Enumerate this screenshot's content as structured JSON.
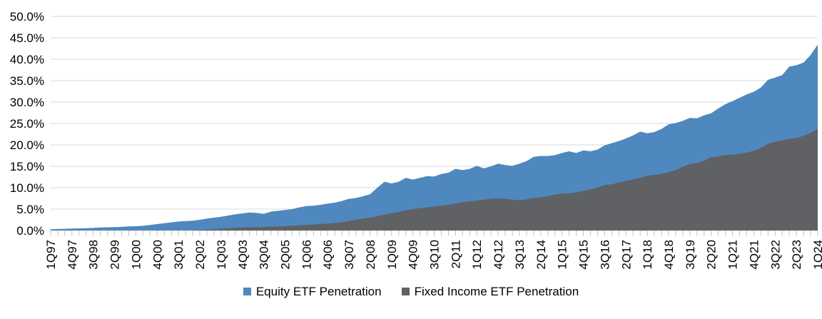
{
  "chart_data": {
    "type": "area",
    "title": "",
    "xlabel": "",
    "ylabel": "",
    "grid": true,
    "legend_position": "bottom",
    "categories": [
      "1Q97",
      "2Q97",
      "3Q97",
      "4Q97",
      "1Q98",
      "2Q98",
      "3Q98",
      "4Q98",
      "1Q99",
      "2Q99",
      "3Q99",
      "4Q99",
      "1Q00",
      "2Q00",
      "3Q00",
      "4Q00",
      "1Q01",
      "2Q01",
      "3Q01",
      "4Q01",
      "1Q02",
      "2Q02",
      "3Q02",
      "4Q02",
      "1Q03",
      "2Q03",
      "3Q03",
      "4Q03",
      "1Q04",
      "2Q04",
      "3Q04",
      "4Q04",
      "1Q05",
      "2Q05",
      "3Q05",
      "4Q05",
      "1Q06",
      "2Q06",
      "3Q06",
      "4Q06",
      "1Q07",
      "2Q07",
      "3Q07",
      "4Q07",
      "1Q08",
      "2Q08",
      "3Q08",
      "4Q08",
      "1Q09",
      "2Q09",
      "3Q09",
      "4Q09",
      "1Q10",
      "2Q10",
      "3Q10",
      "4Q10",
      "1Q11",
      "2Q11",
      "3Q11",
      "4Q11",
      "1Q12",
      "2Q12",
      "3Q12",
      "4Q12",
      "1Q13",
      "2Q13",
      "3Q13",
      "4Q13",
      "1Q14",
      "2Q14",
      "3Q14",
      "4Q14",
      "1Q15",
      "2Q15",
      "3Q15",
      "4Q15",
      "1Q16",
      "2Q16",
      "3Q16",
      "4Q16",
      "1Q17",
      "2Q17",
      "3Q17",
      "4Q17",
      "1Q18",
      "2Q18",
      "3Q18",
      "4Q18",
      "1Q19",
      "2Q19",
      "3Q19",
      "4Q19",
      "1Q20",
      "2Q20",
      "3Q20",
      "4Q20",
      "1Q21",
      "2Q21",
      "3Q21",
      "4Q21",
      "1Q22",
      "2Q22",
      "3Q22",
      "4Q22",
      "1Q23",
      "2Q23",
      "3Q23",
      "4Q23",
      "1Q24"
    ],
    "series": [
      {
        "name": "Equity ETF Penetration",
        "color": "#4E88BE",
        "values": [
          0.3,
          0.35,
          0.4,
          0.45,
          0.5,
          0.55,
          0.6,
          0.7,
          0.75,
          0.8,
          0.85,
          0.95,
          1.0,
          1.1,
          1.3,
          1.5,
          1.7,
          1.9,
          2.1,
          2.2,
          2.3,
          2.5,
          2.8,
          3.0,
          3.2,
          3.5,
          3.8,
          4.0,
          4.2,
          4.1,
          3.9,
          4.4,
          4.6,
          4.8,
          5.0,
          5.4,
          5.7,
          5.8,
          6.0,
          6.3,
          6.5,
          6.9,
          7.4,
          7.6,
          8.0,
          8.5,
          10.0,
          11.4,
          11.0,
          11.4,
          12.3,
          11.9,
          12.3,
          12.7,
          12.6,
          13.2,
          13.5,
          14.4,
          14.1,
          14.4,
          15.1,
          14.5,
          15.0,
          15.6,
          15.3,
          15.1,
          15.6,
          16.2,
          17.2,
          17.4,
          17.4,
          17.6,
          18.1,
          18.5,
          18.1,
          18.7,
          18.5,
          18.9,
          19.9,
          20.4,
          20.9,
          21.5,
          22.2,
          23.1,
          22.7,
          23.0,
          23.7,
          24.8,
          25.1,
          25.6,
          26.3,
          26.2,
          26.9,
          27.4,
          28.5,
          29.5,
          30.2,
          31.0,
          31.8,
          32.4,
          33.4,
          35.2,
          35.7,
          36.3,
          38.3,
          38.6,
          39.2,
          41.0,
          43.4
        ]
      },
      {
        "name": "Fixed Income ETF Penetration",
        "color": "#5F6165",
        "values": [
          0,
          0,
          0,
          0,
          0,
          0,
          0,
          0,
          0,
          0,
          0,
          0,
          0,
          0,
          0,
          0,
          0,
          0,
          0,
          0,
          0.05,
          0.1,
          0.2,
          0.3,
          0.4,
          0.5,
          0.6,
          0.7,
          0.75,
          0.8,
          0.85,
          0.9,
          0.95,
          1.0,
          1.1,
          1.2,
          1.3,
          1.4,
          1.5,
          1.6,
          1.75,
          1.95,
          2.2,
          2.5,
          2.8,
          3.0,
          3.4,
          3.7,
          4.0,
          4.3,
          4.7,
          5.0,
          5.2,
          5.4,
          5.6,
          5.8,
          6.0,
          6.3,
          6.6,
          6.8,
          7.0,
          7.2,
          7.4,
          7.5,
          7.4,
          7.2,
          7.1,
          7.3,
          7.6,
          7.8,
          8.0,
          8.4,
          8.6,
          8.7,
          8.9,
          9.3,
          9.6,
          10.0,
          10.6,
          10.8,
          11.2,
          11.6,
          11.9,
          12.3,
          12.8,
          13.0,
          13.2,
          13.6,
          14.1,
          14.9,
          15.5,
          15.8,
          16.3,
          17.1,
          17.3,
          17.6,
          17.7,
          17.9,
          18.2,
          18.6,
          19.3,
          20.2,
          20.7,
          21.1,
          21.4,
          21.6,
          22.1,
          22.8,
          23.7
        ]
      }
    ],
    "y_axis": {
      "min": 0,
      "max": 50,
      "step": 5,
      "tick_labels": [
        "0.0%",
        "5.0%",
        "10.0%",
        "15.0%",
        "20.0%",
        "25.0%",
        "30.0%",
        "35.0%",
        "40.0%",
        "45.0%",
        "50.0%"
      ]
    },
    "x_axis": {
      "label_every": 3,
      "first_label": "1Q97",
      "last_label": "1Q24"
    }
  },
  "legend": {
    "items": [
      {
        "label": "Equity ETF Penetration",
        "color": "#4E88BE"
      },
      {
        "label": "Fixed Income ETF Penetration",
        "color": "#5F6165"
      }
    ]
  },
  "style_colors": {
    "gridline": "#D9D9D9",
    "tick": "#BFBFBF",
    "axis_text": "#000000",
    "background": "#FFFFFF"
  }
}
